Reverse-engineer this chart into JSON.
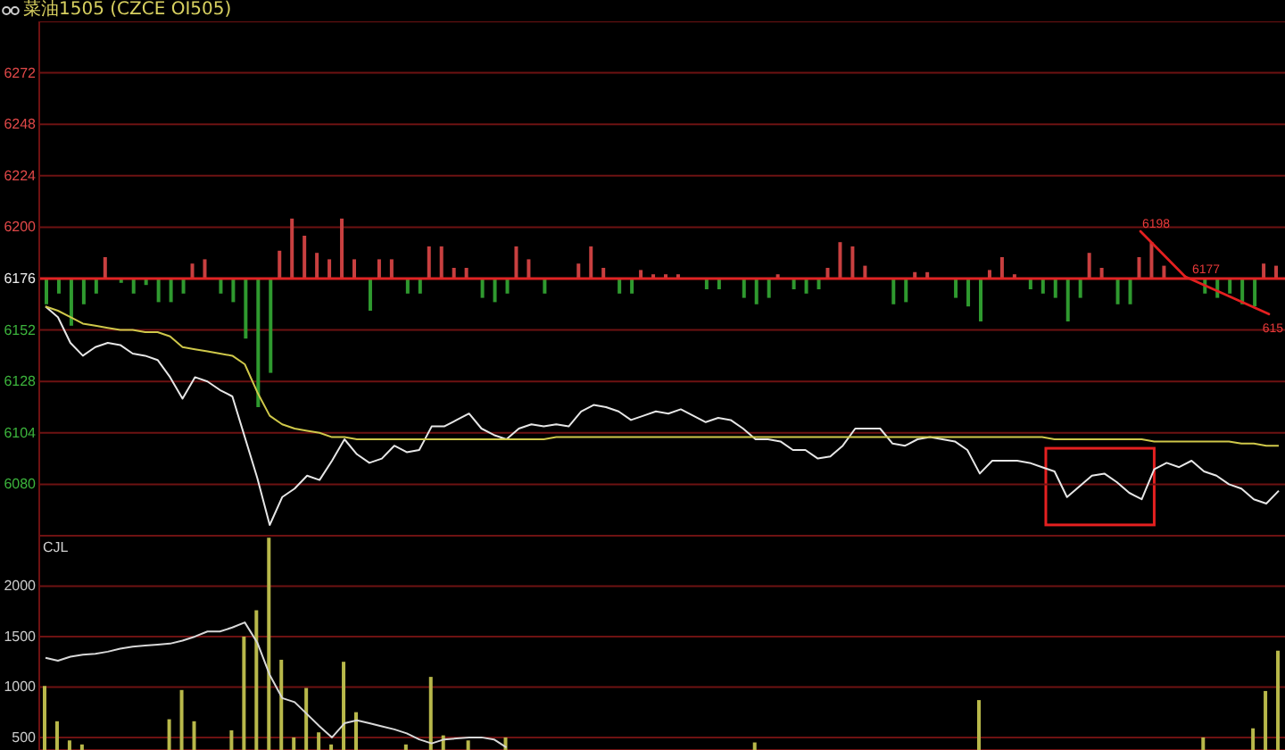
{
  "chart_data": [
    {
      "type": "line",
      "title": "菜油1505 (CZCE OI505)",
      "categories": [
        null,
        null,
        null,
        null,
        null,
        null,
        null,
        null,
        null,
        null,
        null,
        null,
        null,
        null,
        null,
        null,
        null,
        null,
        null,
        null,
        null,
        null,
        null,
        null,
        null,
        null,
        null,
        null,
        null,
        null,
        null,
        null,
        null,
        null,
        null,
        null,
        null,
        null,
        null,
        null,
        null,
        null,
        null,
        null,
        null,
        null,
        null,
        null,
        null,
        null,
        null,
        null,
        null,
        null,
        null,
        null,
        null,
        null,
        null,
        null,
        null,
        null,
        null,
        null,
        null,
        null,
        null,
        null,
        null,
        null,
        null,
        null,
        null,
        null,
        null,
        null,
        null,
        null,
        null,
        null,
        null,
        null,
        null,
        null,
        null,
        null,
        null,
        null,
        null,
        null,
        null,
        null,
        null,
        null,
        null,
        null,
        null,
        null,
        null,
        null
      ],
      "series": [
        {
          "type": "bar",
          "color": "#c84040",
          "values": [
            null,
            null,
            null,
            null,
            null,
            10,
            null,
            null,
            null,
            null,
            null,
            null,
            7,
            9,
            null,
            null,
            null,
            null,
            null,
            13,
            28,
            20,
            12,
            9,
            28,
            9,
            null,
            9,
            9,
            null,
            null,
            15,
            15,
            5,
            5,
            null,
            null,
            null,
            15,
            9,
            null,
            null,
            null,
            7,
            15,
            5,
            null,
            null,
            4,
            2,
            2,
            2,
            null,
            null,
            null,
            null,
            null,
            null,
            null,
            2,
            null,
            null,
            null,
            5,
            17,
            15,
            6,
            null,
            null,
            null,
            3,
            3,
            null,
            null,
            null,
            null,
            4,
            10,
            2,
            null,
            null,
            null,
            null,
            null,
            12,
            5,
            null,
            null,
            10,
            17,
            6,
            null,
            null,
            null,
            null,
            null,
            null,
            null,
            7,
            6
          ],
          "base": [
            null,
            null,
            null,
            null,
            null,
            6176,
            null,
            null,
            null,
            null,
            null,
            null,
            6176,
            6176,
            null,
            null,
            null,
            null,
            null,
            6176,
            6176,
            6176,
            6176,
            6176,
            6176,
            6176,
            null,
            6176,
            6176,
            null,
            null,
            6176,
            6176,
            6176,
            6176,
            null,
            null,
            null,
            6176,
            6176,
            null,
            null,
            null,
            6176,
            6176,
            6176,
            null,
            null,
            6176,
            6176,
            6176,
            6176,
            null,
            null,
            null,
            null,
            null,
            null,
            null,
            6176,
            null,
            null,
            null,
            6176,
            6176,
            6176,
            6176,
            null,
            null,
            null,
            6176,
            6176,
            null,
            null,
            null,
            null,
            6176,
            6176,
            6176,
            null,
            null,
            null,
            null,
            null,
            6176,
            6176,
            null,
            null,
            6176,
            6176,
            6176,
            null,
            null,
            null,
            null,
            null,
            null,
            null,
            6176,
            6176
          ]
        },
        {
          "type": "bar",
          "color": "#2f9a2f",
          "values": [
            -12,
            -7,
            -22,
            -12,
            -7,
            null,
            -2,
            -7,
            -3,
            -11,
            -11,
            -7,
            null,
            null,
            -7,
            -11,
            -28,
            -60,
            -44,
            null,
            null,
            null,
            null,
            null,
            null,
            null,
            -15,
            null,
            null,
            -7,
            -7,
            null,
            null,
            null,
            null,
            -9,
            -11,
            -7,
            null,
            null,
            -7,
            null,
            null,
            null,
            null,
            null,
            -7,
            -7,
            null,
            null,
            null,
            null,
            null,
            -5,
            -5,
            null,
            -9,
            -12,
            -9,
            null,
            -5,
            -7,
            -5,
            null,
            null,
            null,
            null,
            null,
            -12,
            -11,
            null,
            null,
            null,
            -9,
            -13,
            -20,
            null,
            null,
            null,
            -5,
            -7,
            -9,
            -20,
            -9,
            null,
            null,
            -12,
            -12,
            null,
            null,
            null,
            null,
            null,
            -7,
            -9,
            -7,
            -12,
            -13,
            null,
            null
          ],
          "base": [
            6176,
            6176,
            6176,
            6176,
            6176,
            null,
            6176,
            6176,
            6176,
            6176,
            6176,
            6176,
            null,
            null,
            6176,
            6176,
            6176,
            6176,
            6176,
            null,
            null,
            null,
            null,
            null,
            null,
            null,
            6176,
            null,
            null,
            6176,
            6176,
            null,
            null,
            null,
            null,
            6176,
            6176,
            6176,
            null,
            null,
            6176,
            null,
            null,
            null,
            null,
            null,
            6176,
            6176,
            null,
            null,
            null,
            null,
            null,
            6176,
            6176,
            null,
            6176,
            6176,
            6176,
            null,
            6176,
            6176,
            6176,
            null,
            null,
            null,
            null,
            null,
            6176,
            6176,
            null,
            null,
            null,
            6176,
            6176,
            6176,
            null,
            null,
            null,
            6176,
            6176,
            6176,
            6176,
            6176,
            null,
            null,
            6176,
            6176,
            null,
            null,
            null,
            null,
            null,
            6176,
            6176,
            6176,
            6176,
            6176,
            null,
            null
          ]
        },
        {
          "color": "#e6e6e6",
          "values": [
            6163,
            6158,
            6146,
            6140,
            6144,
            6146,
            6145,
            6141,
            6140,
            6138,
            6130,
            6120,
            6130,
            6128,
            6124,
            6121,
            6102,
            6083,
            6061,
            6074,
            6078,
            6084,
            6082,
            6091,
            6101,
            6094,
            6090,
            6092,
            6098,
            6095,
            6096,
            6107,
            6107,
            6110,
            6113,
            6106,
            6103,
            6101,
            6106,
            6108,
            6107,
            6108,
            6107,
            6114,
            6117,
            6116,
            6114,
            6110,
            6112,
            6114,
            6113,
            6115,
            6112,
            6109,
            6111,
            6110,
            6106,
            6101,
            6101,
            6100,
            6096,
            6096,
            6092,
            6093,
            6098,
            6106,
            6106,
            6106,
            6099,
            6098,
            6101,
            6102,
            6101,
            6100,
            6096,
            6085,
            6091,
            6091,
            6091,
            6090,
            6088,
            6086,
            6074,
            6079,
            6084,
            6085,
            6081,
            6076,
            6073,
            6087,
            6090,
            6088,
            6091,
            6086,
            6084,
            6080,
            6078,
            6073,
            6071,
            6077
          ]
        },
        {
          "color": "#cfc84a",
          "values": [
            6163,
            6161,
            6158,
            6155,
            6154,
            6153,
            6152,
            6152,
            6151,
            6151,
            6149,
            6144,
            6143,
            6142,
            6141,
            6140,
            6136,
            6123,
            6112,
            6108,
            6106,
            6105,
            6104,
            6102,
            6102,
            6101,
            6101,
            6101,
            6101,
            6101,
            6101,
            6101,
            6101,
            6101,
            6101,
            6101,
            6101,
            6101,
            6101,
            6101,
            6101,
            6102,
            6102,
            6102,
            6102,
            6102,
            6102,
            6102,
            6102,
            6102,
            6102,
            6102,
            6102,
            6102,
            6102,
            6102,
            6102,
            6102,
            6102,
            6102,
            6102,
            6102,
            6102,
            6102,
            6102,
            6102,
            6102,
            6102,
            6102,
            6102,
            6102,
            6102,
            6102,
            6102,
            6102,
            6102,
            6102,
            6102,
            6102,
            6102,
            6102,
            6101,
            6101,
            6101,
            6101,
            6101,
            6101,
            6101,
            6101,
            6100,
            6100,
            6100,
            6100,
            6100,
            6100,
            6100,
            6099,
            6099,
            6098,
            6098
          ]
        }
      ],
      "ylim": [
        6056,
        6296
      ],
      "yticks": [
        6080,
        6104,
        6128,
        6152,
        6176,
        6200,
        6224,
        6248,
        6272
      ],
      "grid": "y",
      "tick_labels": "y",
      "ref_lines": [
        {
          "axis": "y",
          "value": 6176,
          "color": "#e02424"
        }
      ],
      "annotations": [
        "6198",
        "6177",
        "615"
      ]
    },
    {
      "type": "bar",
      "title": "CJL",
      "categories": [
        null,
        null,
        null,
        null,
        null,
        null,
        null,
        null,
        null,
        null,
        null,
        null,
        null,
        null,
        null,
        null,
        null,
        null,
        null,
        null,
        null,
        null,
        null,
        null,
        null,
        null,
        null,
        null,
        null,
        null,
        null,
        null,
        null,
        null,
        null,
        null,
        null,
        null,
        null,
        null,
        null,
        null,
        null,
        null,
        null,
        null,
        null,
        null,
        null,
        null,
        null,
        null,
        null,
        null,
        null,
        null,
        null,
        null,
        null,
        null,
        null,
        null,
        null,
        null,
        null,
        null,
        null,
        null,
        null,
        null,
        null,
        null,
        null,
        null,
        null,
        null,
        null,
        null,
        null,
        null,
        null,
        null,
        null,
        null,
        null,
        null,
        null,
        null,
        null,
        null,
        null,
        null,
        null,
        null,
        null,
        null,
        null,
        null,
        null,
        null
      ],
      "series": [
        {
          "color": "#b8b84a",
          "values": [
            1010,
            660,
            470,
            430,
            null,
            null,
            null,
            null,
            null,
            null,
            680,
            970,
            660,
            null,
            null,
            570,
            1500,
            1760,
            2480,
            1270,
            500,
            990,
            550,
            430,
            1250,
            750,
            null,
            null,
            null,
            430,
            null,
            1100,
            520,
            null,
            470,
            null,
            null,
            500,
            null,
            null,
            null,
            null,
            null,
            null,
            null,
            null,
            null,
            null,
            null,
            null,
            null,
            null,
            null,
            null,
            null,
            null,
            null,
            450,
            null,
            null,
            null,
            null,
            null,
            null,
            null,
            null,
            null,
            null,
            null,
            null,
            null,
            null,
            null,
            null,
            null,
            870,
            null,
            null,
            null,
            null,
            null,
            null,
            null,
            null,
            null,
            null,
            null,
            null,
            null,
            null,
            null,
            null,
            null,
            500,
            null,
            null,
            null,
            590,
            960,
            1360
          ]
        },
        {
          "type": "line",
          "color": "#d8d8d8",
          "values": [
            1290,
            1260,
            1300,
            1320,
            1330,
            1350,
            1380,
            1400,
            1410,
            1420,
            1430,
            1460,
            1500,
            1550,
            1550,
            1590,
            1640,
            1440,
            1120,
            890,
            850,
            730,
            610,
            500,
            640,
            670,
            640,
            610,
            580,
            540,
            480,
            440,
            480,
            490,
            500,
            500,
            480,
            400,
            null,
            null,
            null,
            null,
            null,
            null,
            null,
            null,
            null,
            null,
            null,
            null,
            null,
            null,
            null,
            null,
            null,
            null,
            null,
            null,
            null,
            null,
            null,
            null,
            null,
            null,
            null,
            null,
            null,
            null,
            null,
            null,
            null,
            null,
            null,
            null,
            null,
            null,
            null,
            null,
            null,
            null,
            null,
            null,
            null,
            null,
            null,
            null,
            null,
            null,
            null,
            null,
            null,
            null,
            null,
            null,
            null,
            null,
            null,
            null,
            null,
            null
          ]
        }
      ],
      "ylim": [
        375,
        2500
      ],
      "yticks": [
        500,
        1000,
        1500,
        2000
      ],
      "grid": "y",
      "tick_labels": "y"
    }
  ]
}
